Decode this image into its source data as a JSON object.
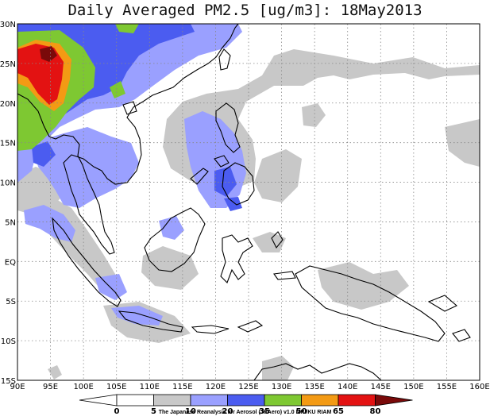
{
  "title": "Daily Averaged PM2.5 [ug/m3]: 18May2013",
  "credit": "The Japanese Reanalysis for Aerosol (JRAero) v1.0 MRI/KU RIAM",
  "map": {
    "lat_labels": [
      "30N",
      "25N",
      "20N",
      "15N",
      "10N",
      "5N",
      "EQ",
      "5S",
      "10S",
      "15S"
    ],
    "lon_labels": [
      "90E",
      "95E",
      "100E",
      "105E",
      "110E",
      "115E",
      "120E",
      "125E",
      "130E",
      "135E",
      "140E",
      "145E",
      "150E",
      "155E",
      "160E"
    ],
    "lat_range": [
      -15,
      30
    ],
    "lon_range": [
      90,
      160
    ],
    "grid": "dotted"
  },
  "colorbar": {
    "ticks": [
      "0",
      "5",
      "10",
      "20",
      "35",
      "50",
      "65",
      "80"
    ],
    "colors": [
      "#ffffff",
      "#ffffff",
      "#c8c8c8",
      "#9aa0ff",
      "#4b5cf0",
      "#7ec832",
      "#f39a14",
      "#e31212",
      "#7a0a0a"
    ]
  }
}
